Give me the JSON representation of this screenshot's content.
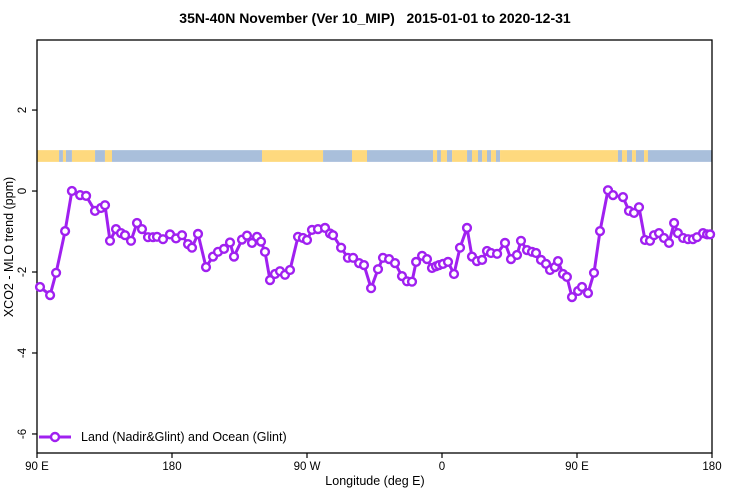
{
  "title": "35N-40N November (Ver 10_MIP)   2015-01-01 to 2020-12-31",
  "legend": {
    "entries": [
      {
        "label": "Land (Nadir&Glint) and Ocean (Glint)",
        "color": "#A020F0",
        "marker": "open-circle"
      }
    ]
  },
  "chart_data": {
    "type": "line",
    "title": "35N-40N November (Ver 10_MIP)   2015-01-01 to 2020-12-31",
    "xlabel": "Longitude (deg E)",
    "ylabel": "XCO2 - MLO trend (ppm)",
    "xlim": [
      90,
      540
    ],
    "ylim": [
      -6.47,
      3.73
    ],
    "grid": false,
    "legend_position": "bottom-left",
    "x_ticks": [
      {
        "value": 90,
        "label": "90 E"
      },
      {
        "value": 180,
        "label": "180"
      },
      {
        "value": 270,
        "label": "90 W"
      },
      {
        "value": 360,
        "label": "0"
      },
      {
        "value": 450,
        "label": "90 E"
      },
      {
        "value": 540,
        "label": "180"
      }
    ],
    "y_ticks": [
      {
        "value": 2,
        "label": "2"
      },
      {
        "value": 0,
        "label": "0"
      },
      {
        "value": -2,
        "label": "-2"
      },
      {
        "value": -4,
        "label": "-4"
      },
      {
        "value": -6,
        "label": "-6"
      }
    ],
    "colors": {
      "series": "#A020F0",
      "marker_fill": "#FFFFFF",
      "land": "#FED97E",
      "ocean": "#A9BFDB",
      "frame": "#000000"
    },
    "surface_band": {
      "y_from": 0.72,
      "y_to": 1.01,
      "segments": [
        {
          "from": 90.0,
          "to": 104.7,
          "type": "land"
        },
        {
          "from": 104.7,
          "to": 107.3,
          "type": "ocean"
        },
        {
          "from": 107.3,
          "to": 109.3,
          "type": "land"
        },
        {
          "from": 109.3,
          "to": 113.3,
          "type": "ocean"
        },
        {
          "from": 113.3,
          "to": 128.7,
          "type": "land"
        },
        {
          "from": 128.7,
          "to": 135.3,
          "type": "ocean"
        },
        {
          "from": 135.3,
          "to": 140.0,
          "type": "land"
        },
        {
          "from": 140.0,
          "to": 240.0,
          "type": "ocean"
        },
        {
          "from": 240.0,
          "to": 280.7,
          "type": "land"
        },
        {
          "from": 280.7,
          "to": 300.0,
          "type": "ocean"
        },
        {
          "from": 300.0,
          "to": 310.0,
          "type": "land"
        },
        {
          "from": 310.0,
          "to": 354.0,
          "type": "ocean"
        },
        {
          "from": 354.0,
          "to": 356.7,
          "type": "land"
        },
        {
          "from": 356.7,
          "to": 359.3,
          "type": "ocean"
        },
        {
          "from": 359.3,
          "to": 363.3,
          "type": "land"
        },
        {
          "from": 363.3,
          "to": 366.7,
          "type": "ocean"
        },
        {
          "from": 366.7,
          "to": 376.7,
          "type": "land"
        },
        {
          "from": 376.7,
          "to": 380.0,
          "type": "ocean"
        },
        {
          "from": 380.0,
          "to": 384.0,
          "type": "land"
        },
        {
          "from": 384.0,
          "to": 386.7,
          "type": "ocean"
        },
        {
          "from": 386.7,
          "to": 390.0,
          "type": "land"
        },
        {
          "from": 390.0,
          "to": 392.7,
          "type": "ocean"
        },
        {
          "from": 392.7,
          "to": 396.0,
          "type": "land"
        },
        {
          "from": 396.0,
          "to": 398.7,
          "type": "ocean"
        },
        {
          "from": 398.7,
          "to": 477.3,
          "type": "land"
        },
        {
          "from": 477.3,
          "to": 480.0,
          "type": "ocean"
        },
        {
          "from": 480.0,
          "to": 483.3,
          "type": "land"
        },
        {
          "from": 483.3,
          "to": 486.7,
          "type": "ocean"
        },
        {
          "from": 486.7,
          "to": 489.3,
          "type": "land"
        },
        {
          "from": 489.3,
          "to": 494.7,
          "type": "ocean"
        },
        {
          "from": 494.7,
          "to": 497.3,
          "type": "land"
        },
        {
          "from": 497.3,
          "to": 540.0,
          "type": "ocean"
        }
      ]
    },
    "series": [
      {
        "name": "Land (Nadir&Glint) and Ocean (Glint)",
        "points": [
          [
            92.0,
            -2.37
          ],
          [
            98.7,
            -2.57
          ],
          [
            102.7,
            -2.02
          ],
          [
            108.7,
            -0.99
          ],
          [
            113.3,
            0.0
          ],
          [
            118.7,
            -0.1
          ],
          [
            122.7,
            -0.12
          ],
          [
            128.7,
            -0.49
          ],
          [
            132.7,
            -0.42
          ],
          [
            135.3,
            -0.35
          ],
          [
            138.7,
            -1.23
          ],
          [
            142.7,
            -0.94
          ],
          [
            146.0,
            -1.04
          ],
          [
            148.7,
            -1.09
          ],
          [
            152.7,
            -1.23
          ],
          [
            156.7,
            -0.79
          ],
          [
            160.0,
            -0.94
          ],
          [
            164.0,
            -1.14
          ],
          [
            167.3,
            -1.14
          ],
          [
            170.0,
            -1.13
          ],
          [
            174.0,
            -1.19
          ],
          [
            178.7,
            -1.07
          ],
          [
            182.7,
            -1.17
          ],
          [
            186.7,
            -1.09
          ],
          [
            190.7,
            -1.31
          ],
          [
            193.3,
            -1.4
          ],
          [
            197.3,
            -1.06
          ],
          [
            202.7,
            -1.88
          ],
          [
            207.3,
            -1.62
          ],
          [
            210.7,
            -1.5
          ],
          [
            214.7,
            -1.43
          ],
          [
            218.7,
            -1.27
          ],
          [
            221.3,
            -1.62
          ],
          [
            226.7,
            -1.2
          ],
          [
            230.0,
            -1.1
          ],
          [
            233.3,
            -1.28
          ],
          [
            236.7,
            -1.13
          ],
          [
            239.3,
            -1.25
          ],
          [
            242.0,
            -1.5
          ],
          [
            245.3,
            -2.2
          ],
          [
            248.7,
            -2.05
          ],
          [
            252.0,
            -1.98
          ],
          [
            255.3,
            -2.07
          ],
          [
            258.7,
            -1.95
          ],
          [
            264.0,
            -1.13
          ],
          [
            267.3,
            -1.16
          ],
          [
            270.0,
            -1.21
          ],
          [
            273.3,
            -0.96
          ],
          [
            277.3,
            -0.94
          ],
          [
            282.0,
            -0.91
          ],
          [
            285.3,
            -1.05
          ],
          [
            287.3,
            -1.09
          ],
          [
            292.7,
            -1.4
          ],
          [
            297.3,
            -1.65
          ],
          [
            300.7,
            -1.65
          ],
          [
            304.7,
            -1.78
          ],
          [
            308.0,
            -1.83
          ],
          [
            312.7,
            -2.4
          ],
          [
            317.3,
            -1.93
          ],
          [
            320.7,
            -1.65
          ],
          [
            324.7,
            -1.68
          ],
          [
            328.7,
            -1.78
          ],
          [
            333.3,
            -2.1
          ],
          [
            336.7,
            -2.23
          ],
          [
            340.0,
            -2.24
          ],
          [
            342.7,
            -1.75
          ],
          [
            346.7,
            -1.6
          ],
          [
            350.0,
            -1.68
          ],
          [
            353.3,
            -1.9
          ],
          [
            356.0,
            -1.86
          ],
          [
            358.0,
            -1.83
          ],
          [
            360.7,
            -1.8
          ],
          [
            364.0,
            -1.75
          ],
          [
            368.0,
            -2.05
          ],
          [
            372.0,
            -1.4
          ],
          [
            376.7,
            -0.91
          ],
          [
            380.0,
            -1.62
          ],
          [
            383.3,
            -1.73
          ],
          [
            386.7,
            -1.7
          ],
          [
            390.0,
            -1.48
          ],
          [
            392.7,
            -1.53
          ],
          [
            396.7,
            -1.55
          ],
          [
            402.0,
            -1.28
          ],
          [
            406.0,
            -1.68
          ],
          [
            410.0,
            -1.58
          ],
          [
            412.7,
            -1.23
          ],
          [
            416.7,
            -1.46
          ],
          [
            420.0,
            -1.5
          ],
          [
            422.7,
            -1.53
          ],
          [
            426.0,
            -1.7
          ],
          [
            429.3,
            -1.8
          ],
          [
            432.0,
            -1.95
          ],
          [
            435.3,
            -1.88
          ],
          [
            437.3,
            -1.73
          ],
          [
            440.7,
            -2.05
          ],
          [
            443.3,
            -2.12
          ],
          [
            446.7,
            -2.62
          ],
          [
            450.7,
            -2.47
          ],
          [
            453.3,
            -2.37
          ],
          [
            457.3,
            -2.52
          ],
          [
            461.3,
            -2.02
          ],
          [
            465.3,
            -0.99
          ],
          [
            470.7,
            0.02
          ],
          [
            474.0,
            -0.1
          ],
          [
            480.7,
            -0.15
          ],
          [
            484.7,
            -0.49
          ],
          [
            488.0,
            -0.54
          ],
          [
            491.3,
            -0.4
          ],
          [
            495.3,
            -1.21
          ],
          [
            498.7,
            -1.23
          ],
          [
            501.3,
            -1.09
          ],
          [
            504.7,
            -1.04
          ],
          [
            508.0,
            -1.16
          ],
          [
            511.3,
            -1.28
          ],
          [
            514.7,
            -0.79
          ],
          [
            517.3,
            -1.04
          ],
          [
            520.7,
            -1.16
          ],
          [
            524.0,
            -1.19
          ],
          [
            527.3,
            -1.19
          ],
          [
            530.0,
            -1.14
          ],
          [
            534.0,
            -1.04
          ],
          [
            536.7,
            -1.07
          ],
          [
            538.7,
            -1.07
          ]
        ]
      }
    ]
  }
}
